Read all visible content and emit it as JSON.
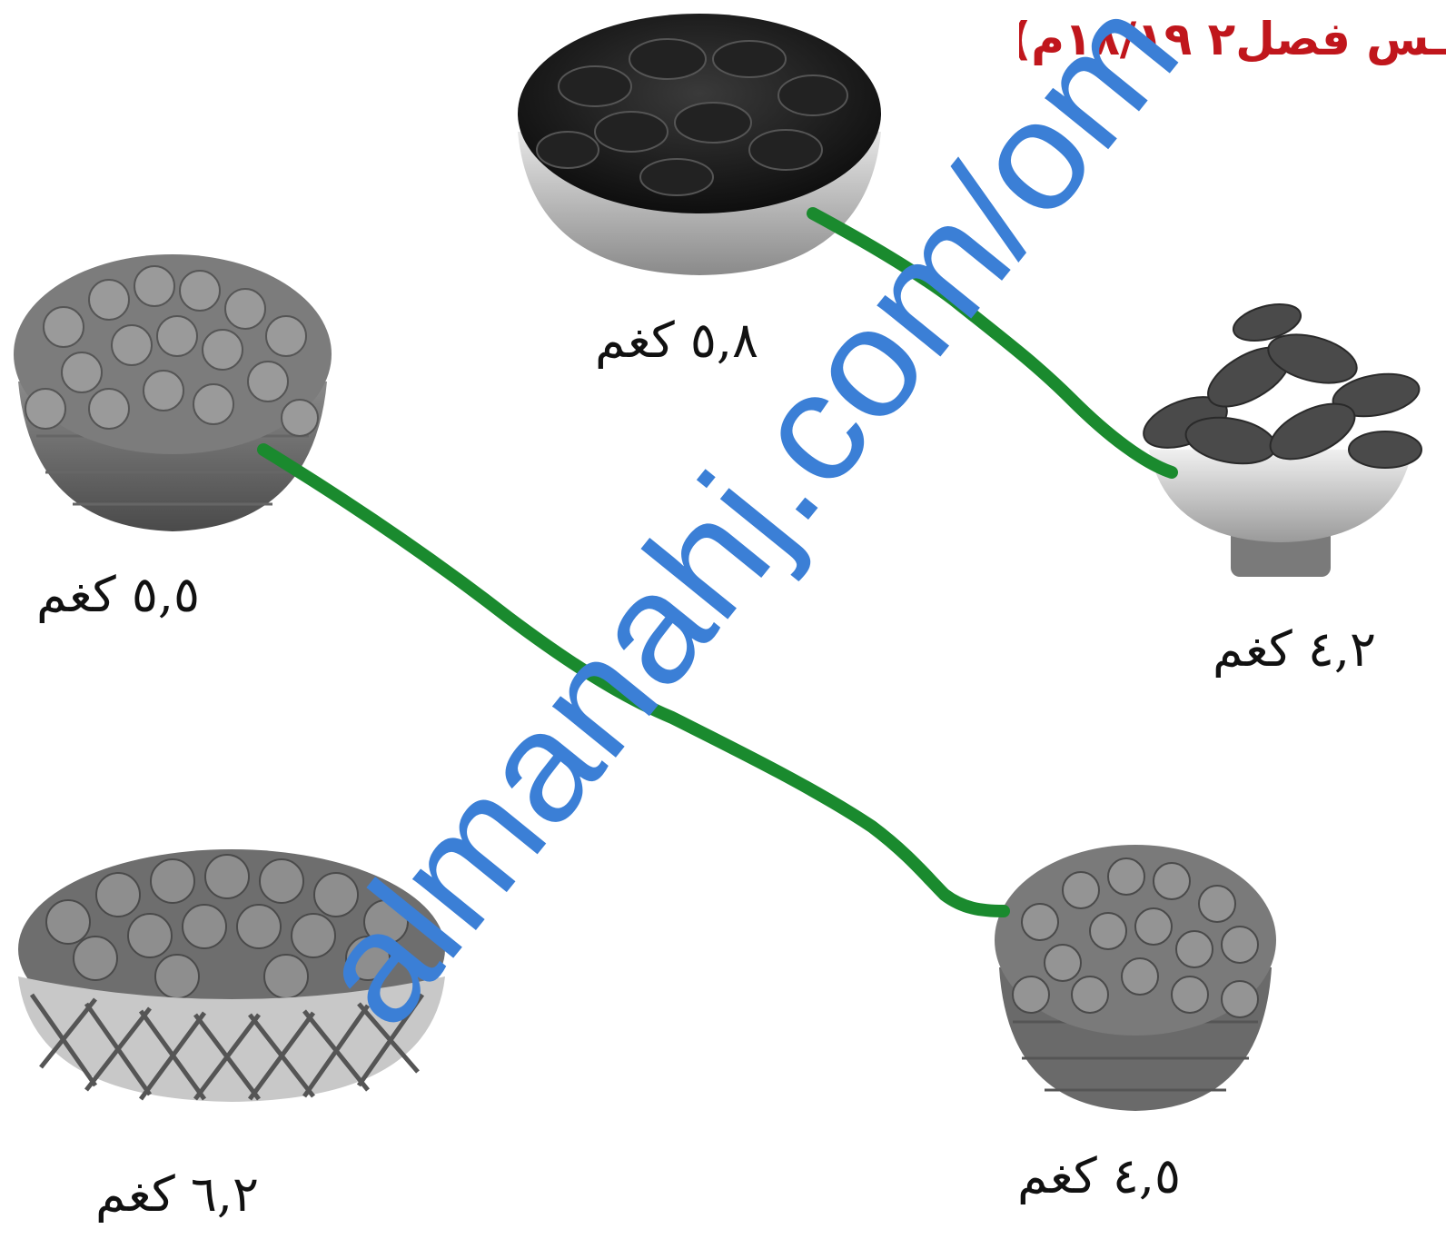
{
  "header": {
    "text": "ـس فصل٢ ١٨/١٩م)"
  },
  "baskets": [
    {
      "id": "top-center",
      "weight": "٥,٨ كغم"
    },
    {
      "id": "middle-left",
      "weight": "٥,٥ كغم"
    },
    {
      "id": "middle-right",
      "weight": "٤,٢ كغم"
    },
    {
      "id": "bottom-left",
      "weight": "٦,٢ كغم"
    },
    {
      "id": "bottom-right",
      "weight": "٤,٥ كغم"
    }
  ],
  "watermark": {
    "text": "almanahj.com/om",
    "color": "#3b7fd6"
  },
  "lines": {
    "color": "#1a8a2e"
  }
}
